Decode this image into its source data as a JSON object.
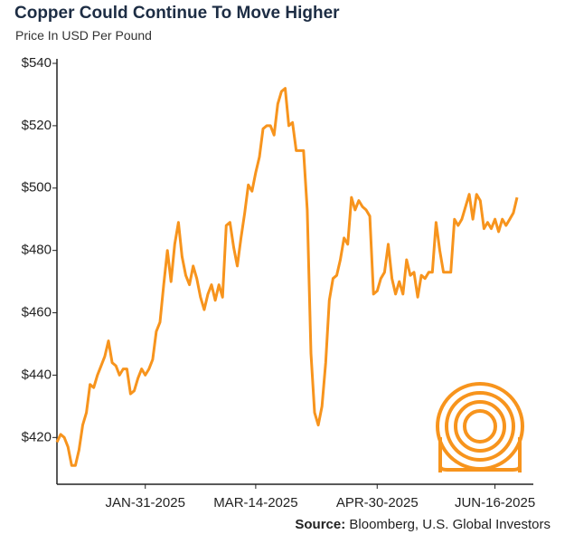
{
  "chart_data": {
    "type": "line",
    "title": "Copper Could Continue To Move Higher",
    "subtitle": "Price In USD Per Pound",
    "source_label": "Source:",
    "source": "Bloomberg, U.S. Global Investors",
    "categories": [
      null,
      null,
      null,
      null,
      null,
      null,
      null,
      null,
      null,
      null,
      null,
      null,
      null,
      null,
      null,
      null,
      null,
      null,
      null,
      null,
      null,
      null,
      null,
      null,
      "JAN-31-2025",
      null,
      null,
      null,
      null,
      null,
      null,
      null,
      null,
      null,
      null,
      null,
      null,
      null,
      null,
      null,
      null,
      null,
      null,
      null,
      null,
      null,
      null,
      null,
      null,
      null,
      null,
      null,
      null,
      null,
      "MAR-14-2025",
      null,
      null,
      null,
      null,
      null,
      null,
      null,
      null,
      null,
      null,
      null,
      null,
      null,
      null,
      null,
      null,
      null,
      null,
      null,
      null,
      null,
      null,
      null,
      null,
      null,
      null,
      null,
      null,
      null,
      null,
      null,
      null,
      "APR-30-2025",
      null,
      null,
      null,
      null,
      null,
      null,
      null,
      null,
      null,
      null,
      null,
      null,
      null,
      null,
      null,
      null,
      null,
      null,
      null,
      null,
      null,
      null,
      null,
      null,
      null,
      null,
      null,
      null,
      null,
      null,
      null,
      "JUN-16-2025",
      null,
      null,
      null,
      null,
      null,
      null
    ],
    "series": [
      {
        "color": "#f7941d",
        "values": [
          418.5,
          421,
          420,
          417,
          411,
          411,
          416,
          424,
          428,
          437,
          436,
          440,
          443,
          446,
          451,
          444,
          443,
          440,
          442,
          442,
          434,
          435,
          439,
          442,
          440,
          442,
          445,
          454,
          457,
          469,
          480,
          470,
          482,
          489,
          478,
          472,
          469,
          475,
          471,
          465,
          461,
          466,
          469,
          464,
          469,
          465,
          488,
          489,
          481,
          475,
          484,
          492,
          501,
          499,
          505,
          510,
          519,
          520,
          520,
          517,
          527,
          531,
          532,
          520,
          521,
          512,
          512,
          512,
          493,
          447,
          428,
          424,
          430,
          444,
          464,
          471,
          472,
          477,
          484,
          482,
          497,
          493,
          496,
          494,
          493,
          491,
          466,
          467,
          471,
          473,
          482,
          471,
          466,
          470,
          466,
          477,
          472,
          473,
          465,
          472,
          471,
          473,
          473,
          489,
          480,
          473,
          473,
          473,
          490,
          488,
          490,
          494,
          498,
          490,
          498,
          496,
          487,
          489,
          487,
          490,
          486,
          490,
          488,
          490,
          492,
          497
        ]
      }
    ],
    "ylim": [
      405,
      540
    ],
    "yticks": [
      {
        "value": 420,
        "label": "$420"
      },
      {
        "value": 440,
        "label": "$440"
      },
      {
        "value": 460,
        "label": "$460"
      },
      {
        "value": 480,
        "label": "$480"
      },
      {
        "value": 500,
        "label": "$500"
      },
      {
        "value": 520,
        "label": "$520"
      },
      {
        "value": 540,
        "label": "$540"
      }
    ],
    "grid": false
  }
}
